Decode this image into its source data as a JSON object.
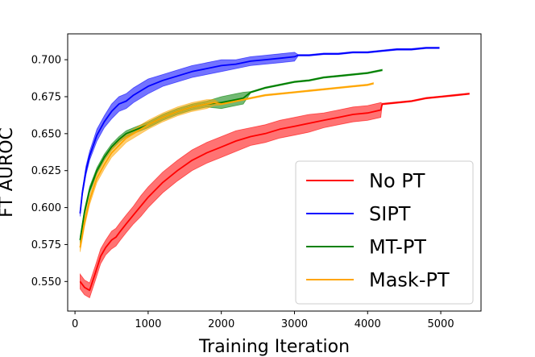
{
  "chart_data": {
    "type": "line",
    "xlabel": "Training Iteration",
    "ylabel": "FT AUROC",
    "xlim": [
      -100,
      5550
    ],
    "ylim": [
      0.53,
      0.7175
    ],
    "xticks": [
      0,
      1000,
      2000,
      3000,
      4000,
      5000
    ],
    "yticks": [
      0.55,
      0.575,
      0.6,
      0.625,
      0.65,
      0.675,
      0.7
    ],
    "ytick_labels": [
      "0.550",
      "0.575",
      "0.600",
      "0.625",
      "0.650",
      "0.675",
      "0.700"
    ],
    "grid": false,
    "legend_position": "lower-right",
    "series": [
      {
        "name": "No PT",
        "color": "#ff0000",
        "x": [
          70,
          130,
          200,
          280,
          350,
          420,
          500,
          560,
          620,
          700,
          800,
          900,
          1000,
          1200,
          1400,
          1600,
          1800,
          2000,
          2200,
          2400,
          2600,
          2800,
          3000,
          3200,
          3400,
          3600,
          3800,
          4000,
          4180,
          4200,
          4400,
          4600,
          4800,
          5000,
          5200,
          5390
        ],
        "y": [
          0.55,
          0.546,
          0.544,
          0.556,
          0.567,
          0.573,
          0.578,
          0.58,
          0.584,
          0.589,
          0.595,
          0.601,
          0.607,
          0.617,
          0.625,
          0.632,
          0.637,
          0.641,
          0.645,
          0.648,
          0.65,
          0.653,
          0.655,
          0.657,
          0.659,
          0.661,
          0.663,
          0.664,
          0.666,
          0.67,
          0.671,
          0.672,
          0.674,
          0.675,
          0.676,
          0.677
        ],
        "band": [
          0.005,
          0.005,
          0.005,
          0.005,
          0.005,
          0.005,
          0.006,
          0.006,
          0.006,
          0.006,
          0.006,
          0.007,
          0.007,
          0.007,
          0.007,
          0.007,
          0.007,
          0.007,
          0.007,
          0.006,
          0.006,
          0.006,
          0.006,
          0.006,
          0.005,
          0.005,
          0.005,
          0.005,
          0.005,
          0.0005,
          0.0005,
          0.0005,
          0.0005,
          0.0005,
          0.0005,
          0.0005
        ]
      },
      {
        "name": "SIPT",
        "color": "#0000ff",
        "x": [
          70,
          100,
          150,
          200,
          300,
          400,
          500,
          600,
          700,
          800,
          1000,
          1200,
          1400,
          1600,
          1800,
          2000,
          2200,
          2400,
          2600,
          2800,
          3000,
          3050,
          3200,
          3400,
          3600,
          3800,
          4000,
          4200,
          4400,
          4600,
          4800,
          4980
        ],
        "y": [
          0.596,
          0.61,
          0.625,
          0.635,
          0.649,
          0.658,
          0.665,
          0.67,
          0.672,
          0.676,
          0.682,
          0.686,
          0.689,
          0.692,
          0.694,
          0.696,
          0.697,
          0.699,
          0.7,
          0.701,
          0.702,
          0.703,
          0.703,
          0.704,
          0.704,
          0.705,
          0.705,
          0.706,
          0.707,
          0.707,
          0.708,
          0.708
        ],
        "band": [
          0.002,
          0.002,
          0.003,
          0.003,
          0.004,
          0.004,
          0.005,
          0.005,
          0.005,
          0.005,
          0.005,
          0.004,
          0.004,
          0.004,
          0.004,
          0.004,
          0.003,
          0.003,
          0.003,
          0.003,
          0.003,
          0.0005,
          0.0005,
          0.0005,
          0.0005,
          0.0005,
          0.0005,
          0.0005,
          0.0005,
          0.0005,
          0.0005,
          0.0005
        ]
      },
      {
        "name": "MT-PT",
        "color": "#008000",
        "x": [
          70,
          130,
          200,
          300,
          400,
          500,
          600,
          700,
          800,
          1000,
          1200,
          1400,
          1600,
          1800,
          2000,
          2200,
          2300,
          2400,
          2600,
          2800,
          3000,
          3200,
          3400,
          3600,
          3800,
          4000,
          4200
        ],
        "y": [
          0.578,
          0.597,
          0.612,
          0.625,
          0.634,
          0.641,
          0.646,
          0.65,
          0.652,
          0.656,
          0.661,
          0.665,
          0.668,
          0.67,
          0.671,
          0.673,
          0.674,
          0.678,
          0.681,
          0.683,
          0.685,
          0.686,
          0.688,
          0.689,
          0.69,
          0.691,
          0.693
        ],
        "band": [
          0.002,
          0.002,
          0.002,
          0.002,
          0.002,
          0.002,
          0.002,
          0.002,
          0.002,
          0.002,
          0.002,
          0.002,
          0.002,
          0.002,
          0.004,
          0.004,
          0.004,
          0.0005,
          0.0005,
          0.0005,
          0.0005,
          0.0005,
          0.0005,
          0.0005,
          0.0005,
          0.0005,
          0.0005
        ]
      },
      {
        "name": "Mask-PT",
        "color": "#ffa500",
        "x": [
          70,
          130,
          200,
          300,
          400,
          500,
          600,
          700,
          800,
          1000,
          1200,
          1400,
          1600,
          1800,
          1900,
          2000,
          2200,
          2400,
          2600,
          2800,
          3000,
          3200,
          3400,
          3600,
          3800,
          4000,
          4080
        ],
        "y": [
          0.573,
          0.59,
          0.605,
          0.62,
          0.629,
          0.637,
          0.642,
          0.647,
          0.65,
          0.656,
          0.661,
          0.665,
          0.668,
          0.67,
          0.671,
          0.67,
          0.672,
          0.674,
          0.676,
          0.677,
          0.678,
          0.679,
          0.68,
          0.681,
          0.682,
          0.683,
          0.684
        ],
        "band": [
          0.003,
          0.003,
          0.003,
          0.003,
          0.003,
          0.003,
          0.003,
          0.003,
          0.003,
          0.003,
          0.003,
          0.003,
          0.003,
          0.003,
          0.002,
          0.0005,
          0.0005,
          0.0005,
          0.0005,
          0.0005,
          0.0005,
          0.0005,
          0.0005,
          0.0005,
          0.0005,
          0.0005,
          0.0005
        ]
      }
    ]
  }
}
